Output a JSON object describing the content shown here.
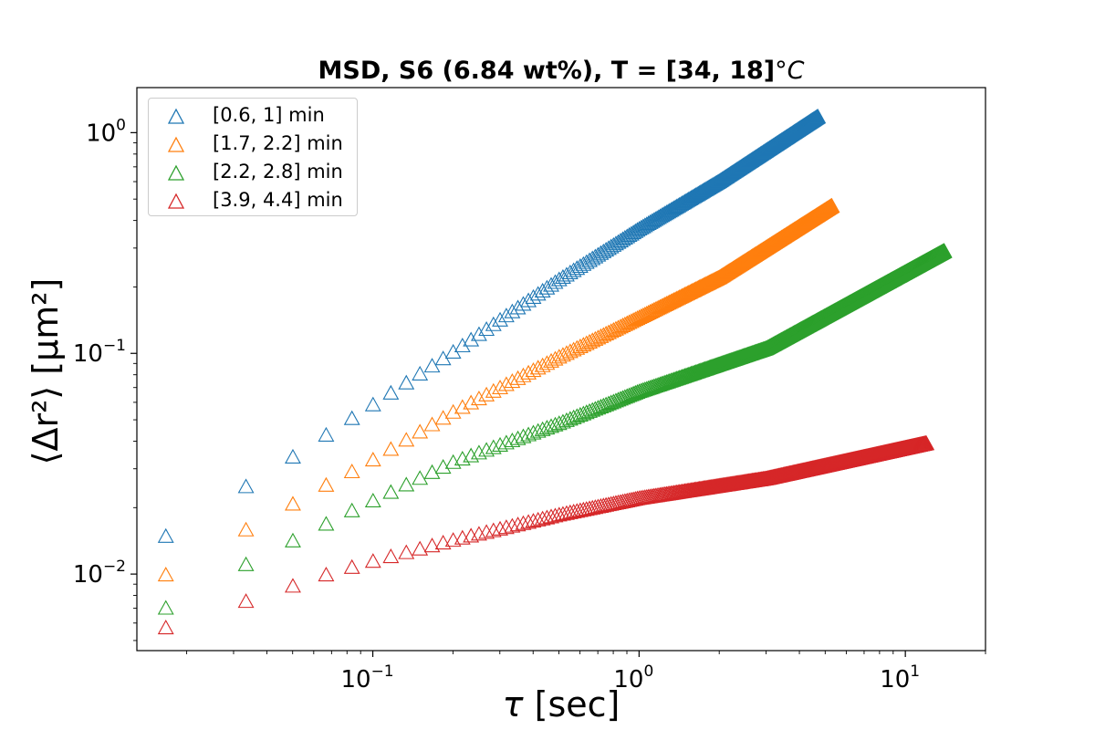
{
  "chart_data": {
    "type": "scatter",
    "title": "MSD, S6 (6.84 wt%), T = [34, 18]",
    "title_unit": "°C",
    "xlabel_symbol": "τ",
    "xlabel_unit": "[sec]",
    "ylabel": "⟨Δr²⟩ [μm²]",
    "x_scale": "log",
    "y_scale": "log",
    "xlim": [
      0.013,
      20
    ],
    "ylim": [
      0.0045,
      1.6
    ],
    "x_ticks": [
      {
        "value": 0.1,
        "label": "10",
        "exp": "−1"
      },
      {
        "value": 1,
        "label": "10",
        "exp": "0"
      },
      {
        "value": 10,
        "label": "10",
        "exp": "1"
      }
    ],
    "y_ticks": [
      {
        "value": 0.01,
        "label": "10",
        "exp": "−2"
      },
      {
        "value": 0.1,
        "label": "10",
        "exp": "−1"
      },
      {
        "value": 1,
        "label": "10",
        "exp": "0"
      }
    ],
    "marker": "triangle-open",
    "dt": 0.0167,
    "legend_position": "upper-left",
    "grid": false,
    "series": [
      {
        "name": "[0.6, 1] min",
        "color": "#1f77b4",
        "x_max": 4.7,
        "anchors": [
          [
            0.0167,
            0.0148
          ],
          [
            0.0333,
            0.0248
          ],
          [
            0.05,
            0.0338
          ],
          [
            0.0667,
            0.0425
          ],
          [
            0.0833,
            0.0505
          ],
          [
            0.1,
            0.0583
          ],
          [
            0.2,
            0.101
          ],
          [
            0.5,
            0.215
          ],
          [
            1.0,
            0.365
          ],
          [
            2.0,
            0.6
          ],
          [
            4.7,
            1.18
          ]
        ]
      },
      {
        "name": "[1.7, 2.2] min",
        "color": "#ff7f0e",
        "x_max": 5.3,
        "anchors": [
          [
            0.0167,
            0.0099
          ],
          [
            0.0333,
            0.0158
          ],
          [
            0.05,
            0.0207
          ],
          [
            0.0667,
            0.0252
          ],
          [
            0.0833,
            0.029
          ],
          [
            0.1,
            0.0328
          ],
          [
            0.2,
            0.054
          ],
          [
            0.5,
            0.096
          ],
          [
            1.0,
            0.145
          ],
          [
            2.0,
            0.22
          ],
          [
            5.3,
            0.465
          ]
        ]
      },
      {
        "name": "[2.2, 2.8] min",
        "color": "#2ca02c",
        "x_max": 14.0,
        "anchors": [
          [
            0.0167,
            0.007
          ],
          [
            0.0333,
            0.011
          ],
          [
            0.05,
            0.0141
          ],
          [
            0.0667,
            0.0168
          ],
          [
            0.0833,
            0.0193
          ],
          [
            0.1,
            0.0214
          ],
          [
            0.2,
            0.032
          ],
          [
            0.5,
            0.048
          ],
          [
            1.0,
            0.067
          ],
          [
            3.0,
            0.105
          ],
          [
            14.0,
            0.29
          ]
        ]
      },
      {
        "name": "[3.9, 4.4] min",
        "color": "#d62728",
        "x_max": 12.0,
        "anchors": [
          [
            0.0167,
            0.0057
          ],
          [
            0.0333,
            0.0075
          ],
          [
            0.05,
            0.0088
          ],
          [
            0.0667,
            0.0099
          ],
          [
            0.0833,
            0.0107
          ],
          [
            0.1,
            0.0114
          ],
          [
            0.2,
            0.0142
          ],
          [
            0.5,
            0.0185
          ],
          [
            1.0,
            0.022
          ],
          [
            3.0,
            0.027
          ],
          [
            12.0,
            0.039
          ]
        ]
      }
    ]
  }
}
